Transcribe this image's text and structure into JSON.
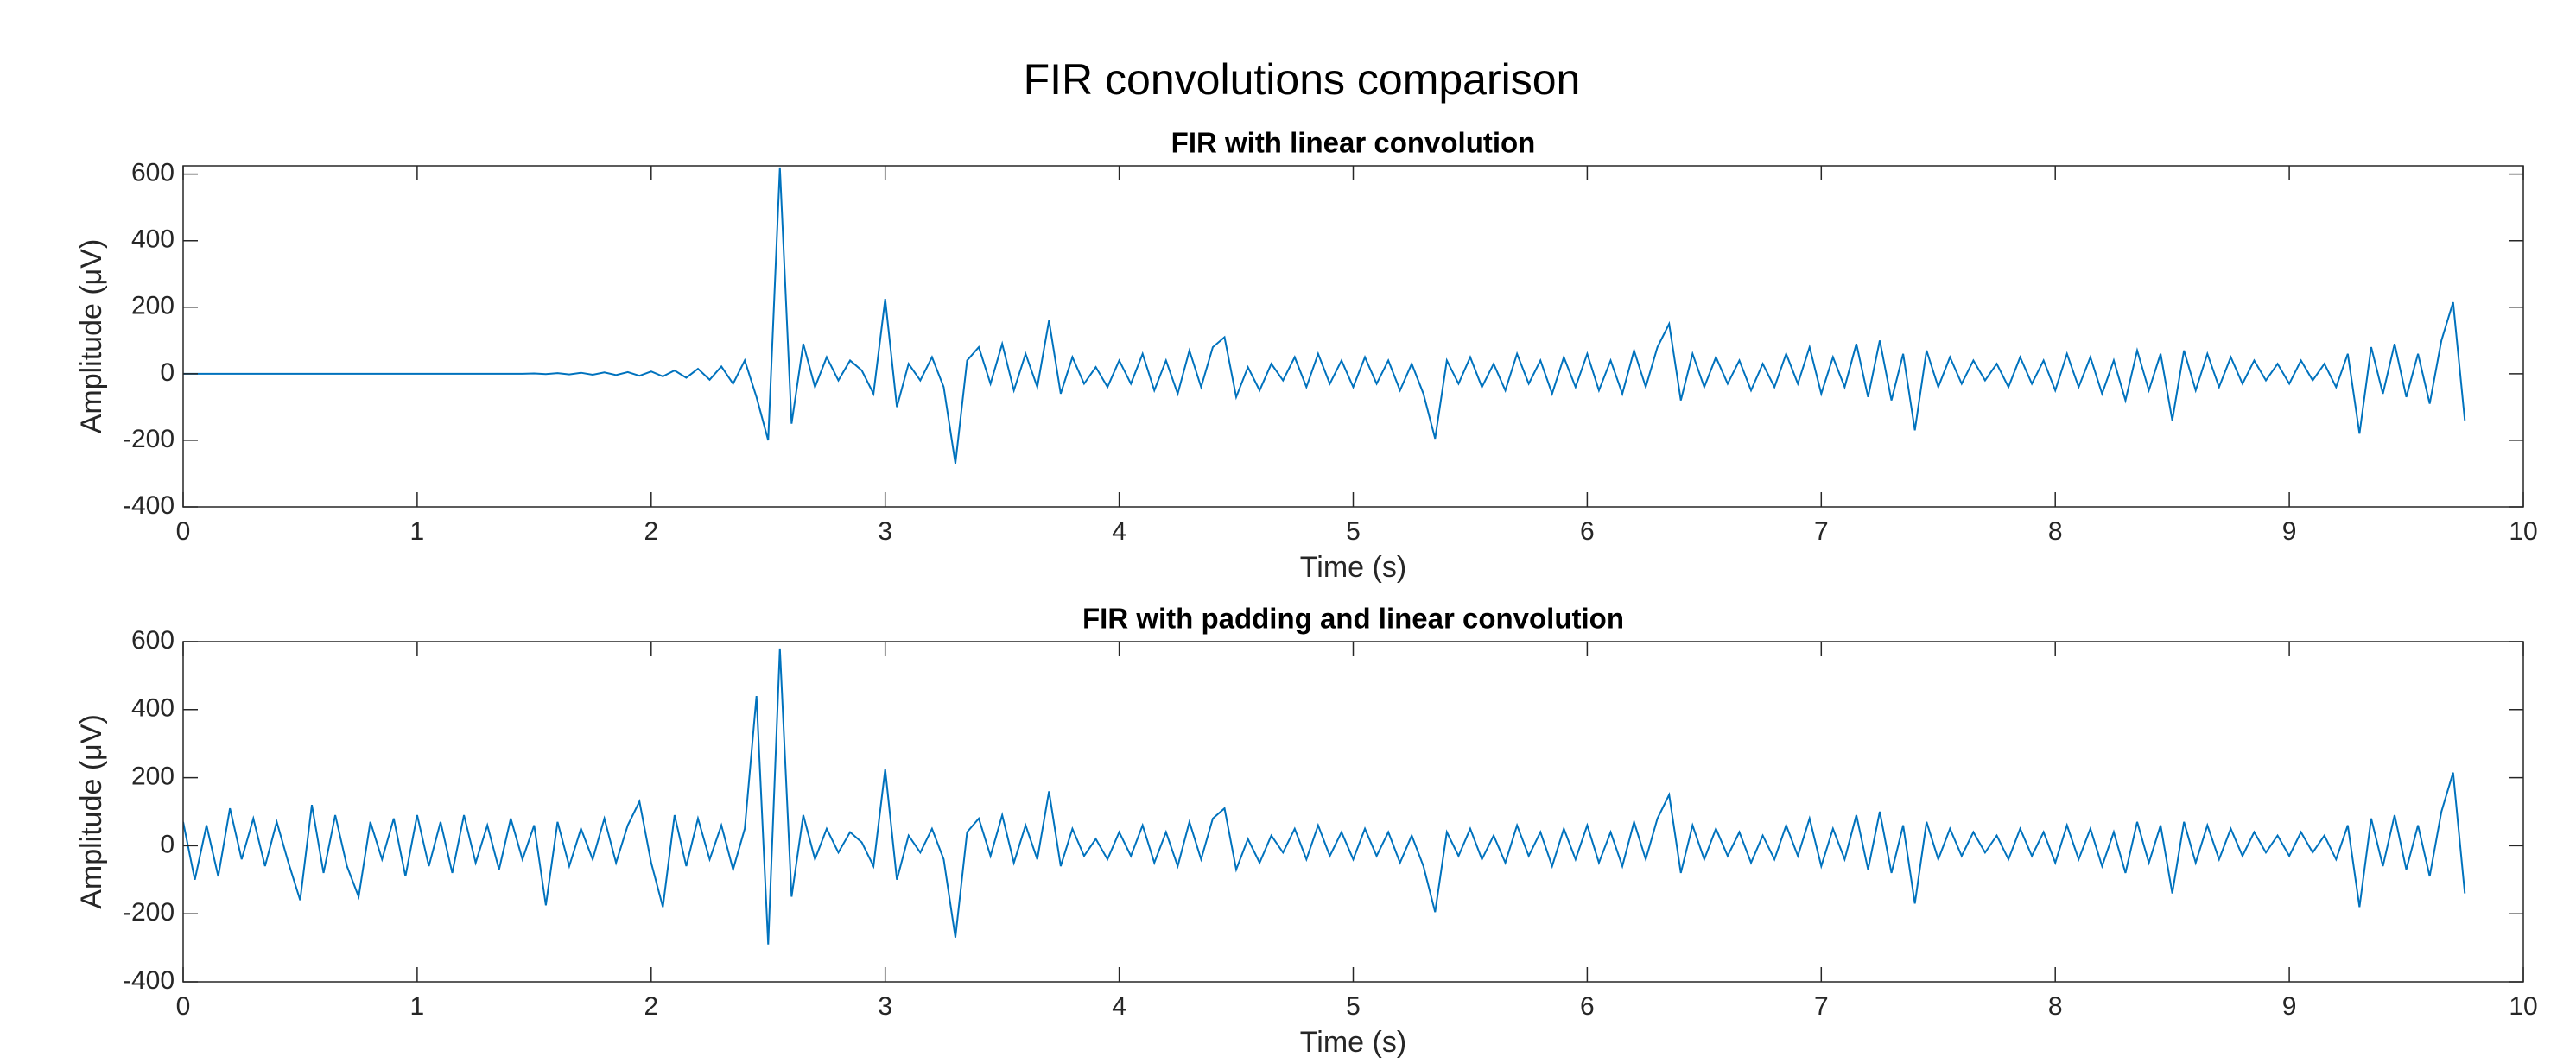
{
  "title": "FIR convolutions comparison",
  "chart_data": [
    {
      "type": "line",
      "title": "FIR with linear convolution",
      "xlabel": "Time (s)",
      "ylabel": "Amplitude (μV)",
      "xlim": [
        0,
        10
      ],
      "ylim": [
        -400,
        625
      ],
      "xticks": [
        0,
        1,
        2,
        3,
        4,
        5,
        6,
        7,
        8,
        9,
        10
      ],
      "yticks": [
        -400,
        -200,
        0,
        200,
        400,
        600
      ],
      "x": [
        0,
        0.05,
        0.1,
        0.15,
        0.2,
        0.25,
        0.3,
        0.35,
        0.4,
        0.45,
        0.5,
        0.55,
        0.6,
        0.65,
        0.7,
        0.75,
        0.8,
        0.85,
        0.9,
        0.95,
        1,
        1.05,
        1.1,
        1.15,
        1.2,
        1.25,
        1.3,
        1.35,
        1.4,
        1.45,
        1.5,
        1.55,
        1.6,
        1.65,
        1.7,
        1.75,
        1.8,
        1.85,
        1.9,
        1.95,
        2,
        2.05,
        2.1,
        2.15,
        2.2,
        2.25,
        2.3,
        2.35,
        2.4,
        2.45,
        2.5,
        2.55,
        2.6,
        2.65,
        2.7,
        2.75,
        2.8,
        2.85,
        2.9,
        2.95,
        3,
        3.05,
        3.1,
        3.15,
        3.2,
        3.25,
        3.3,
        3.35,
        3.4,
        3.45,
        3.5,
        3.55,
        3.6,
        3.65,
        3.7,
        3.75,
        3.8,
        3.85,
        3.9,
        3.95,
        4,
        4.05,
        4.1,
        4.15,
        4.2,
        4.25,
        4.3,
        4.35,
        4.4,
        4.45,
        4.5,
        4.55,
        4.6,
        4.65,
        4.7,
        4.75,
        4.8,
        4.85,
        4.9,
        4.95,
        5,
        5.05,
        5.1,
        5.15,
        5.2,
        5.25,
        5.3,
        5.35,
        5.4,
        5.45,
        5.5,
        5.55,
        5.6,
        5.65,
        5.7,
        5.75,
        5.8,
        5.85,
        5.9,
        5.95,
        6,
        6.05,
        6.1,
        6.15,
        6.2,
        6.25,
        6.3,
        6.35,
        6.4,
        6.45,
        6.5,
        6.55,
        6.6,
        6.65,
        6.7,
        6.75,
        6.8,
        6.85,
        6.9,
        6.95,
        7,
        7.05,
        7.1,
        7.15,
        7.2,
        7.25,
        7.3,
        7.35,
        7.4,
        7.45,
        7.5,
        7.55,
        7.6,
        7.65,
        7.7,
        7.75,
        7.8,
        7.85,
        7.9,
        7.95,
        8,
        8.05,
        8.1,
        8.15,
        8.2,
        8.25,
        8.3,
        8.35,
        8.4,
        8.45,
        8.5,
        8.55,
        8.6,
        8.65,
        8.7,
        8.75,
        8.8,
        8.85,
        8.9,
        8.95,
        9,
        9.05,
        9.1,
        9.15,
        9.2,
        9.25,
        9.3,
        9.35,
        9.4,
        9.45,
        9.5,
        9.55,
        9.6,
        9.65,
        9.7,
        9.75
      ],
      "series": [
        {
          "color": "#0072bd",
          "values": [
            0,
            0,
            0,
            0,
            0,
            0,
            0,
            0,
            0,
            0,
            0,
            0,
            0,
            0,
            0,
            0,
            0,
            0,
            0,
            0,
            0,
            0,
            0,
            0,
            0,
            0,
            0,
            0,
            0,
            0,
            1,
            -1,
            2,
            -2,
            3,
            -3,
            4,
            -4,
            5,
            -6,
            7,
            -8,
            10,
            -12,
            15,
            -18,
            22,
            -30,
            40,
            -70,
            -200,
            620,
            -150,
            90,
            -40,
            50,
            -20,
            40,
            10,
            -60,
            225,
            -100,
            30,
            -20,
            50,
            -40,
            -270,
            40,
            80,
            -30,
            90,
            -50,
            60,
            -40,
            160,
            -60,
            50,
            -30,
            20,
            -40,
            40,
            -30,
            60,
            -50,
            40,
            -60,
            70,
            -40,
            80,
            110,
            -70,
            20,
            -50,
            30,
            -20,
            50,
            -40,
            60,
            -30,
            40,
            -40,
            50,
            -30,
            40,
            -50,
            30,
            -60,
            -195,
            40,
            -30,
            50,
            -40,
            30,
            -50,
            60,
            -30,
            40,
            -60,
            50,
            -40,
            60,
            -50,
            40,
            -60,
            70,
            -40,
            80,
            150,
            -80,
            60,
            -40,
            50,
            -30,
            40,
            -50,
            30,
            -40,
            60,
            -30,
            80,
            -60,
            50,
            -40,
            90,
            -70,
            100,
            -80,
            60,
            -170,
            70,
            -40,
            50,
            -30,
            40,
            -20,
            30,
            -40,
            50,
            -30,
            40,
            -50,
            60,
            -40,
            50,
            -60,
            40,
            -80,
            70,
            -50,
            60,
            -140,
            70,
            -50,
            60,
            -40,
            50,
            -30,
            40,
            -20,
            30,
            -30,
            40,
            -20,
            30,
            -40,
            60,
            -180,
            80,
            -60,
            90,
            -70,
            60,
            -90,
            100,
            215,
            -140
          ]
        }
      ]
    },
    {
      "type": "line",
      "title": "FIR with padding and linear convolution",
      "xlabel": "Time (s)",
      "ylabel": "Amplitude (μV)",
      "xlim": [
        0,
        10
      ],
      "ylim": [
        -400,
        600
      ],
      "xticks": [
        0,
        1,
        2,
        3,
        4,
        5,
        6,
        7,
        8,
        9,
        10
      ],
      "yticks": [
        -400,
        -200,
        0,
        200,
        400,
        600
      ],
      "x": [
        0,
        0.05,
        0.1,
        0.15,
        0.2,
        0.25,
        0.3,
        0.35,
        0.4,
        0.45,
        0.5,
        0.55,
        0.6,
        0.65,
        0.7,
        0.75,
        0.8,
        0.85,
        0.9,
        0.95,
        1,
        1.05,
        1.1,
        1.15,
        1.2,
        1.25,
        1.3,
        1.35,
        1.4,
        1.45,
        1.5,
        1.55,
        1.6,
        1.65,
        1.7,
        1.75,
        1.8,
        1.85,
        1.9,
        1.95,
        2,
        2.05,
        2.1,
        2.15,
        2.2,
        2.25,
        2.3,
        2.35,
        2.4,
        2.45,
        2.5,
        2.55,
        2.6,
        2.65,
        2.7,
        2.75,
        2.8,
        2.85,
        2.9,
        2.95,
        3,
        3.05,
        3.1,
        3.15,
        3.2,
        3.25,
        3.3,
        3.35,
        3.4,
        3.45,
        3.5,
        3.55,
        3.6,
        3.65,
        3.7,
        3.75,
        3.8,
        3.85,
        3.9,
        3.95,
        4,
        4.05,
        4.1,
        4.15,
        4.2,
        4.25,
        4.3,
        4.35,
        4.4,
        4.45,
        4.5,
        4.55,
        4.6,
        4.65,
        4.7,
        4.75,
        4.8,
        4.85,
        4.9,
        4.95,
        5,
        5.05,
        5.1,
        5.15,
        5.2,
        5.25,
        5.3,
        5.35,
        5.4,
        5.45,
        5.5,
        5.55,
        5.6,
        5.65,
        5.7,
        5.75,
        5.8,
        5.85,
        5.9,
        5.95,
        6,
        6.05,
        6.1,
        6.15,
        6.2,
        6.25,
        6.3,
        6.35,
        6.4,
        6.45,
        6.5,
        6.55,
        6.6,
        6.65,
        6.7,
        6.75,
        6.8,
        6.85,
        6.9,
        6.95,
        7,
        7.05,
        7.1,
        7.15,
        7.2,
        7.25,
        7.3,
        7.35,
        7.4,
        7.45,
        7.5,
        7.55,
        7.6,
        7.65,
        7.7,
        7.75,
        7.8,
        7.85,
        7.9,
        7.95,
        8,
        8.05,
        8.1,
        8.15,
        8.2,
        8.25,
        8.3,
        8.35,
        8.4,
        8.45,
        8.5,
        8.55,
        8.6,
        8.65,
        8.7,
        8.75,
        8.8,
        8.85,
        8.9,
        8.95,
        9,
        9.05,
        9.1,
        9.15,
        9.2,
        9.25,
        9.3,
        9.35,
        9.4,
        9.45,
        9.5,
        9.55,
        9.6,
        9.65,
        9.7,
        9.75
      ],
      "series": [
        {
          "color": "#0072bd",
          "values": [
            70,
            -100,
            60,
            -90,
            110,
            -40,
            80,
            -60,
            70,
            -50,
            -160,
            120,
            -80,
            90,
            -60,
            -150,
            70,
            -40,
            80,
            -90,
            90,
            -60,
            70,
            -80,
            90,
            -50,
            60,
            -70,
            80,
            -40,
            60,
            -175,
            70,
            -60,
            50,
            -40,
            80,
            -50,
            60,
            130,
            -50,
            -180,
            90,
            -60,
            80,
            -40,
            60,
            -70,
            50,
            440,
            -290,
            580,
            -150,
            90,
            -40,
            50,
            -20,
            40,
            10,
            -60,
            225,
            -100,
            30,
            -20,
            50,
            -40,
            -270,
            40,
            80,
            -30,
            90,
            -50,
            60,
            -40,
            160,
            -60,
            50,
            -30,
            20,
            -40,
            40,
            -30,
            60,
            -50,
            40,
            -60,
            70,
            -40,
            80,
            110,
            -70,
            20,
            -50,
            30,
            -20,
            50,
            -40,
            60,
            -30,
            40,
            -40,
            50,
            -30,
            40,
            -50,
            30,
            -60,
            -195,
            40,
            -30,
            50,
            -40,
            30,
            -50,
            60,
            -30,
            40,
            -60,
            50,
            -40,
            60,
            -50,
            40,
            -60,
            70,
            -40,
            80,
            150,
            -80,
            60,
            -40,
            50,
            -30,
            40,
            -50,
            30,
            -40,
            60,
            -30,
            80,
            -60,
            50,
            -40,
            90,
            -70,
            100,
            -80,
            60,
            -170,
            70,
            -40,
            50,
            -30,
            40,
            -20,
            30,
            -40,
            50,
            -30,
            40,
            -50,
            60,
            -40,
            50,
            -60,
            40,
            -80,
            70,
            -50,
            60,
            -140,
            70,
            -50,
            60,
            -40,
            50,
            -30,
            40,
            -20,
            30,
            -30,
            40,
            -20,
            30,
            -40,
            60,
            -180,
            80,
            -60,
            90,
            -70,
            60,
            -90,
            100,
            215,
            -140
          ]
        }
      ]
    }
  ]
}
